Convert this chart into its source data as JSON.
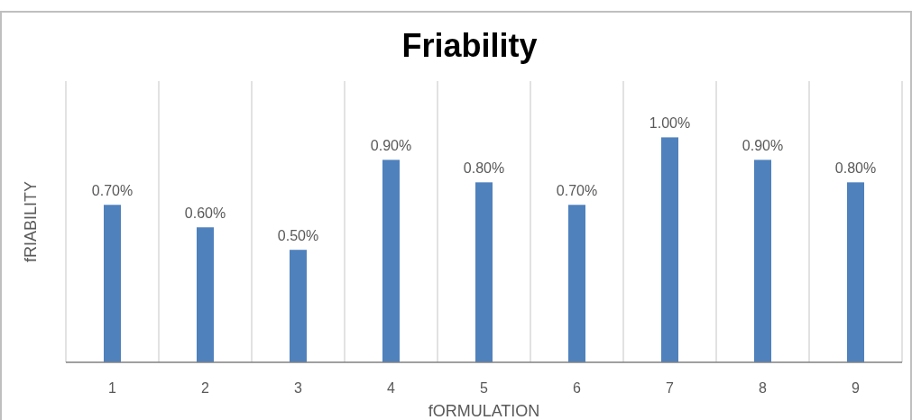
{
  "chart_data": {
    "type": "bar",
    "title": "Friability",
    "xlabel": "fORMULATION",
    "ylabel": "fRIABILITY",
    "categories": [
      "1",
      "2",
      "3",
      "4",
      "5",
      "6",
      "7",
      "8",
      "9"
    ],
    "values": [
      0.7,
      0.6,
      0.5,
      0.9,
      0.8,
      0.7,
      1.0,
      0.9,
      0.8
    ],
    "value_labels": [
      "0.70%",
      "0.60%",
      "0.50%",
      "0.90%",
      "0.80%",
      "0.70%",
      "1.00%",
      "0.90%",
      "0.80%"
    ],
    "color": "#4f81bd",
    "ylim": [
      0,
      1.25
    ],
    "grid": "x",
    "tick_labels": "x"
  }
}
